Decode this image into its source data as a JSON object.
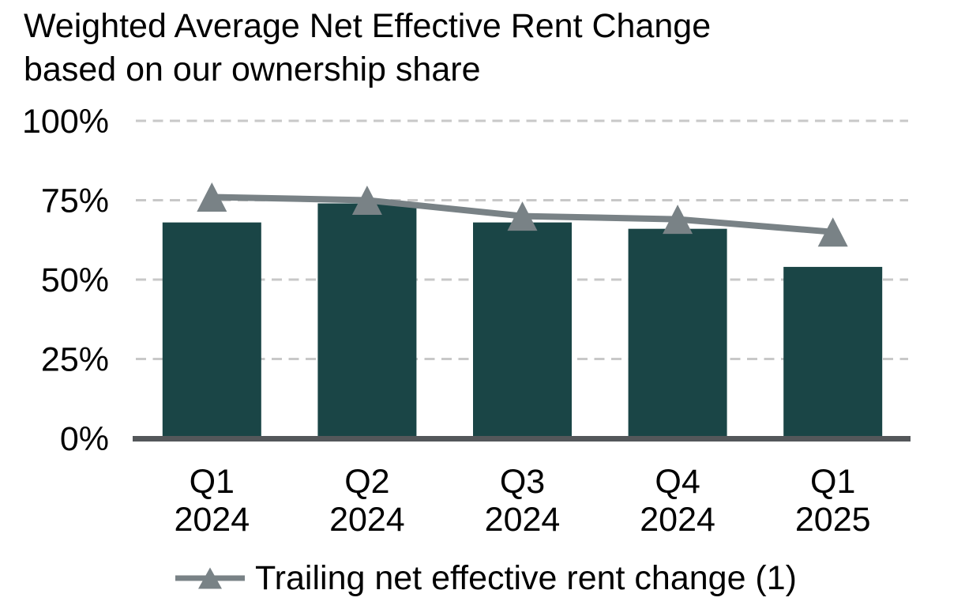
{
  "chart_data": {
    "type": "combo-bar-line",
    "title": "Weighted Average Net Effective Rent Change based on our ownership share",
    "title_line1": "Weighted Average Net Effective Rent Change",
    "title_line2": "based on our ownership share",
    "categories": [
      "Q1 2024",
      "Q2 2024",
      "Q3 2024",
      "Q4 2024",
      "Q1 2025"
    ],
    "bar_values": [
      68,
      74,
      68,
      66,
      54
    ],
    "line_series": {
      "name": "Trailing net effective rent change (1)",
      "marker": "triangle-up",
      "values": [
        76,
        75,
        70,
        69,
        65
      ]
    },
    "xlabel": "",
    "ylabel": "",
    "ylim": [
      0,
      100
    ],
    "yticks": [
      0,
      25,
      50,
      75,
      100
    ],
    "ytick_labels": [
      "0%",
      "25%",
      "50%",
      "75%",
      "100%"
    ],
    "grid": "horizontal-dashed",
    "legend_position": "bottom",
    "colors": {
      "bar": "#1a4546",
      "line": "#798286",
      "grid": "#c8c8c8",
      "axis": "#54575a",
      "text": "#000000",
      "background": "#ffffff"
    }
  }
}
